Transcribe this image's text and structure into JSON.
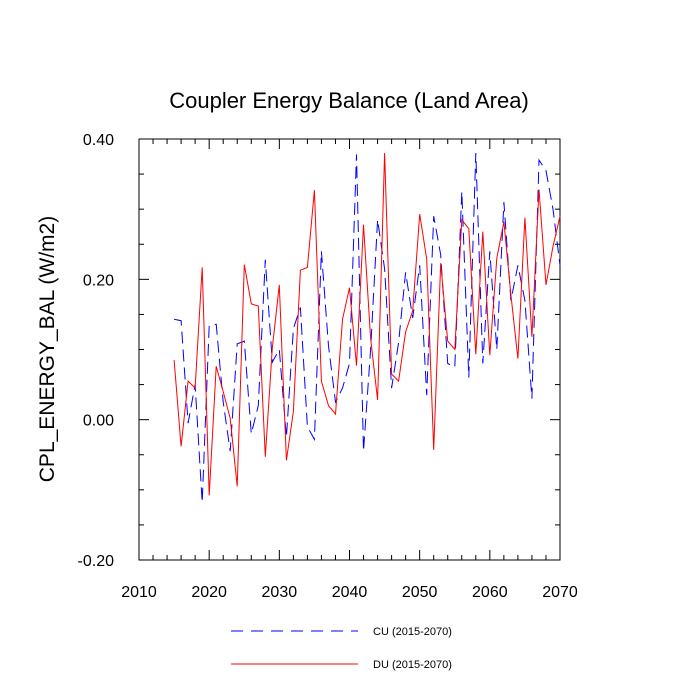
{
  "chart_data": {
    "type": "line",
    "title": "Coupler Energy Balance (Land Area)",
    "ylabel": "CPL_ENERGY_BAL  (W/m2)",
    "xlabel": "",
    "xlim": [
      2010,
      2070
    ],
    "ylim": [
      -0.2,
      0.4
    ],
    "xticks": [
      2010,
      2020,
      2030,
      2040,
      2050,
      2060,
      2070
    ],
    "xtick_labels": [
      "2010",
      "2020",
      "2030",
      "2040",
      "2050",
      "2060",
      "2070"
    ],
    "yticks": [
      -0.2,
      0.0,
      0.2,
      0.4
    ],
    "ytick_labels": [
      "-0.20",
      "0.00",
      "0.20",
      "0.40"
    ],
    "x": [
      2015,
      2016,
      2017,
      2018,
      2019,
      2020,
      2021,
      2022,
      2023,
      2024,
      2025,
      2026,
      2027,
      2028,
      2029,
      2030,
      2031,
      2032,
      2033,
      2034,
      2035,
      2036,
      2037,
      2038,
      2039,
      2040,
      2041,
      2042,
      2043,
      2044,
      2045,
      2046,
      2047,
      2048,
      2049,
      2050,
      2051,
      2052,
      2053,
      2054,
      2055,
      2056,
      2057,
      2058,
      2059,
      2060,
      2061,
      2062,
      2063,
      2064,
      2065,
      2066,
      2067,
      2068,
      2069,
      2070
    ],
    "series": [
      {
        "name": "CU (2015-2070)",
        "label": "CU (2015-2070)",
        "color": "#0000ff",
        "dash": "dashed",
        "values": [
          0.143,
          0.141,
          -0.005,
          0.05,
          -0.118,
          0.134,
          0.136,
          0.025,
          -0.045,
          0.108,
          0.112,
          -0.02,
          0.02,
          0.228,
          0.082,
          0.1,
          -0.025,
          0.13,
          0.16,
          -0.01,
          -0.028,
          0.24,
          0.105,
          0.025,
          0.045,
          0.08,
          0.378,
          -0.045,
          0.1,
          0.285,
          0.215,
          0.045,
          0.11,
          0.21,
          0.145,
          0.22,
          0.035,
          0.29,
          0.235,
          0.08,
          0.075,
          0.325,
          0.06,
          0.38,
          0.08,
          0.24,
          0.1,
          0.31,
          0.17,
          0.22,
          0.17,
          0.03,
          0.37,
          0.355,
          0.3,
          0.22
        ]
      },
      {
        "name": "DU (2015-2070)",
        "label": "DU (2015-2070)",
        "color": "#ff0000",
        "dash": "solid",
        "values": [
          0.085,
          -0.038,
          0.055,
          0.045,
          0.217,
          -0.108,
          0.076,
          0.04,
          0.002,
          -0.095,
          0.221,
          0.165,
          0.162,
          -0.053,
          0.102,
          0.192,
          -0.058,
          0.012,
          0.213,
          0.217,
          0.327,
          0.055,
          0.02,
          0.008,
          0.143,
          0.188,
          0.077,
          0.278,
          0.116,
          0.028,
          0.38,
          0.065,
          0.055,
          0.125,
          0.155,
          0.293,
          0.229,
          -0.043,
          0.223,
          0.112,
          0.1,
          0.285,
          0.272,
          0.093,
          0.268,
          0.092,
          0.23,
          0.282,
          0.178,
          0.087,
          0.288,
          0.118,
          0.328,
          0.192,
          0.247,
          0.29
        ]
      }
    ],
    "legend_position": "bottom-center"
  }
}
